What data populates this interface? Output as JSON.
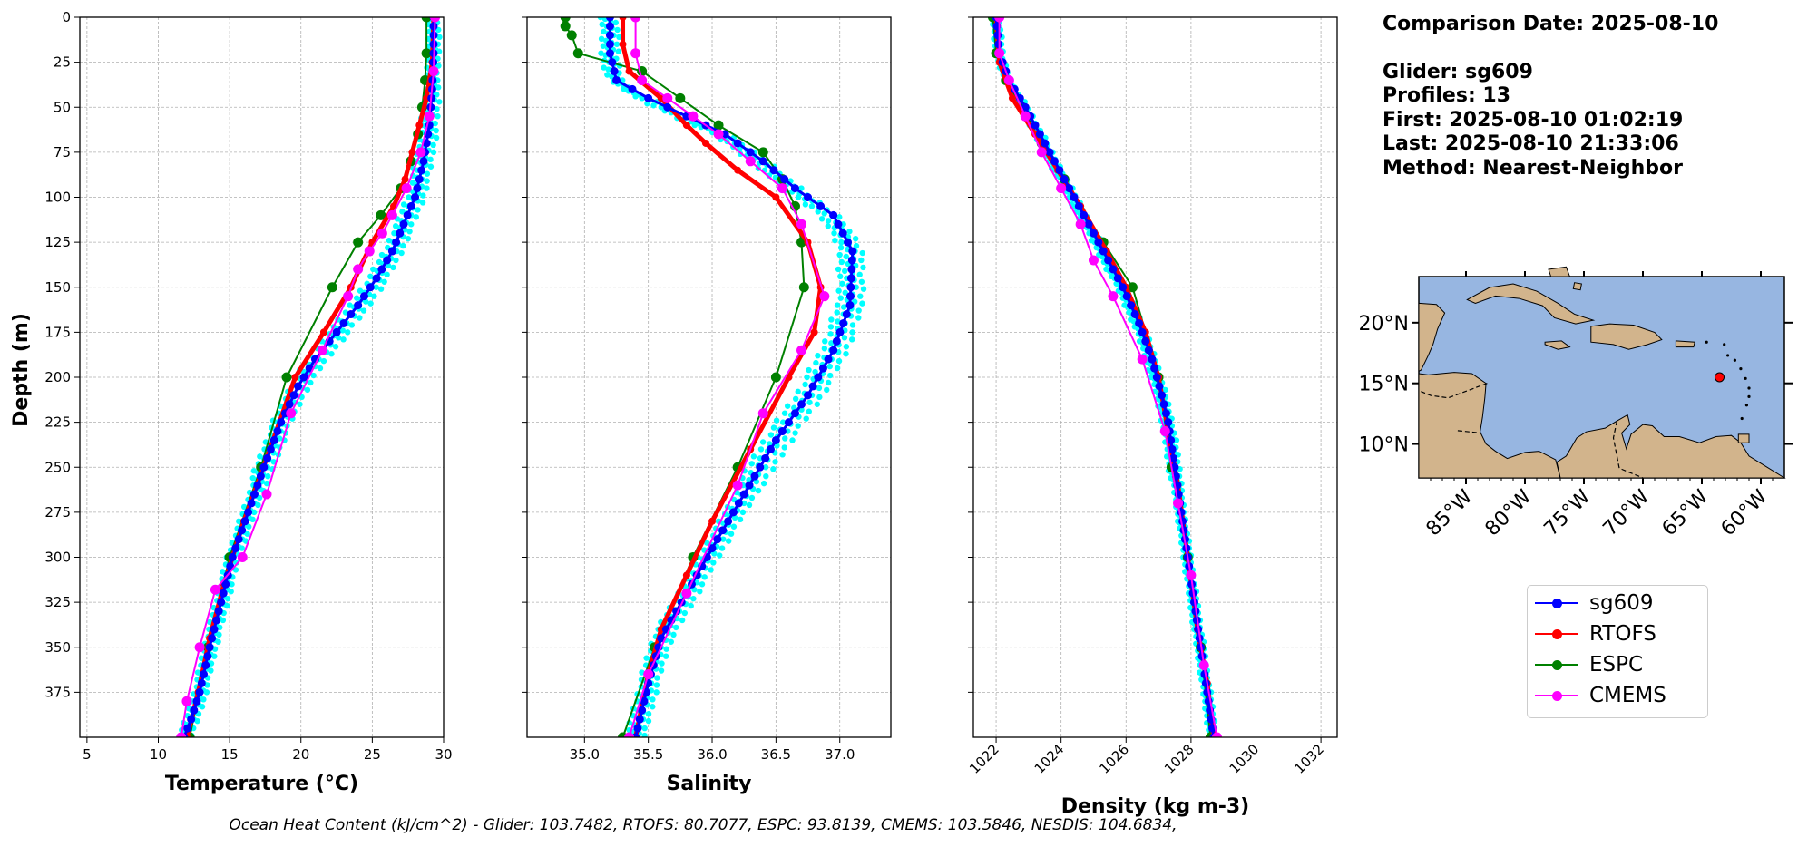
{
  "info": {
    "comparison_date": "Comparison Date: 2025-08-10",
    "glider": "Glider: sg609",
    "profiles": "Profiles: 13",
    "first": "First: 2025-08-10 01:02:19",
    "last": "Last: 2025-08-10 21:33:06",
    "method": "Method: Nearest-Neighbor"
  },
  "footer": "Ocean Heat Content (kJ/cm^2) - Glider: 103.7482,  RTOFS: 80.7077,  ESPC: 93.8139,  CMEMS: 103.5846,  NESDIS: 104.6834,",
  "legend": [
    {
      "name": "sg609",
      "color": "#0000ff"
    },
    {
      "name": "RTOFS",
      "color": "#ff0000"
    },
    {
      "name": "ESPC",
      "color": "#008000"
    },
    {
      "name": "CMEMS",
      "color": "#ff00ff"
    }
  ],
  "colors": {
    "glider_scatter": "#00ffff",
    "ocean": "#97b6e1",
    "land": "#d2b48c",
    "grid": "#b0b0b0"
  },
  "map": {
    "lat_ticks": [
      "20°N",
      "15°N",
      "10°N"
    ],
    "lon_ticks": [
      "85°W",
      "80°W",
      "75°W",
      "70°W",
      "65°W",
      "60°W"
    ],
    "glider_position": {
      "lon": -63.5,
      "lat": 15.5
    }
  },
  "chart_data": [
    {
      "type": "line",
      "xlabel": "Temperature (°C)",
      "ylabel": "Depth (m)",
      "xlim": [
        4.5,
        30
      ],
      "ylim": [
        400,
        0
      ],
      "xticks": [
        5,
        10,
        15,
        20,
        25,
        30
      ],
      "yticks": [
        0,
        25,
        50,
        75,
        100,
        125,
        150,
        175,
        200,
        225,
        250,
        275,
        300,
        325,
        350,
        375
      ],
      "grid": true,
      "series": [
        {
          "name": "sg609",
          "x": [
            29.3,
            29.3,
            29.2,
            29.0,
            28.6,
            28.0,
            27.2,
            26.4,
            25.3,
            24.0,
            22.5,
            21.0,
            19.8,
            18.6,
            17.4,
            16.3,
            15.2,
            14.4,
            13.6,
            12.9,
            12.3,
            11.8
          ],
          "y": [
            0,
            20,
            40,
            60,
            80,
            100,
            115,
            130,
            145,
            160,
            175,
            190,
            205,
            225,
            250,
            275,
            300,
            325,
            350,
            375,
            390,
            400
          ]
        },
        {
          "name": "RTOFS",
          "x": [
            29.3,
            29.2,
            28.8,
            28.3,
            27.8,
            27.3,
            26.5,
            25.0,
            23.5,
            21.6,
            19.6,
            17.6,
            16.0,
            14.6,
            13.6,
            12.8,
            12.0
          ],
          "y": [
            0,
            25,
            45,
            60,
            75,
            90,
            105,
            125,
            150,
            175,
            200,
            245,
            280,
            315,
            345,
            375,
            400
          ]
        },
        {
          "name": "ESPC",
          "x": [
            28.8,
            28.8,
            28.7,
            28.5,
            28.2,
            27.7,
            27.0,
            25.6,
            24.0,
            22.2,
            19.0,
            17.2,
            15.0,
            13.5,
            12.2
          ],
          "y": [
            0,
            20,
            35,
            50,
            65,
            80,
            95,
            110,
            125,
            150,
            200,
            250,
            300,
            350,
            400
          ]
        },
        {
          "name": "CMEMS",
          "x": [
            29.4,
            29.3,
            29.0,
            28.4,
            27.4,
            26.4,
            25.7,
            24.8,
            24.0,
            23.3,
            21.5,
            19.3,
            17.6,
            15.9,
            14.0,
            12.9,
            12.0,
            11.6
          ],
          "y": [
            0,
            30,
            55,
            75,
            95,
            110,
            120,
            130,
            140,
            155,
            185,
            220,
            265,
            300,
            318,
            350,
            380,
            400
          ]
        }
      ]
    },
    {
      "type": "line",
      "xlabel": "Salinity",
      "xlim": [
        34.55,
        37.4
      ],
      "ylim": [
        400,
        0
      ],
      "xticks": [
        35.0,
        35.5,
        36.0,
        36.5,
        37.0
      ],
      "grid": true,
      "series": [
        {
          "name": "sg609",
          "x": [
            35.2,
            35.2,
            35.25,
            35.5,
            35.8,
            36.1,
            36.4,
            36.65,
            36.95,
            37.1,
            37.08,
            36.95,
            36.75,
            36.5,
            36.25,
            36.0,
            35.8,
            35.6,
            35.5,
            35.4
          ],
          "y": [
            0,
            20,
            35,
            45,
            55,
            65,
            80,
            95,
            110,
            130,
            160,
            185,
            210,
            235,
            265,
            295,
            320,
            345,
            370,
            400
          ]
        },
        {
          "name": "RTOFS",
          "x": [
            35.3,
            35.3,
            35.35,
            35.6,
            35.8,
            35.95,
            36.2,
            36.5,
            36.75,
            36.85,
            36.8,
            36.6,
            36.3,
            36.0,
            35.8,
            35.6,
            35.5,
            35.4
          ],
          "y": [
            0,
            15,
            30,
            45,
            60,
            70,
            85,
            100,
            125,
            150,
            175,
            200,
            240,
            280,
            310,
            340,
            365,
            400
          ]
        },
        {
          "name": "ESPC",
          "x": [
            34.85,
            34.85,
            34.9,
            34.95,
            35.45,
            35.75,
            36.05,
            36.4,
            36.55,
            36.65,
            36.7,
            36.72,
            36.5,
            36.2,
            35.85,
            35.55,
            35.3
          ],
          "y": [
            0,
            5,
            10,
            20,
            30,
            45,
            60,
            75,
            90,
            105,
            125,
            150,
            200,
            250,
            300,
            350,
            400
          ]
        },
        {
          "name": "CMEMS",
          "x": [
            35.4,
            35.4,
            35.45,
            35.65,
            35.85,
            36.05,
            36.3,
            36.55,
            36.7,
            36.88,
            36.7,
            36.4,
            36.2,
            35.8,
            35.5,
            35.35
          ],
          "y": [
            0,
            20,
            35,
            45,
            55,
            65,
            80,
            95,
            115,
            155,
            185,
            220,
            260,
            320,
            365,
            400
          ]
        }
      ]
    },
    {
      "type": "line",
      "xlabel": "Density (kg m-3)",
      "xlim": [
        1021.3,
        1032.5
      ],
      "ylim": [
        400,
        0
      ],
      "xticks": [
        1022,
        1024,
        1026,
        1028,
        1030,
        1032
      ],
      "grid": true,
      "series": [
        {
          "name": "sg609",
          "x": [
            1022.0,
            1022.1,
            1022.4,
            1022.9,
            1023.5,
            1024.1,
            1024.7,
            1025.3,
            1025.9,
            1026.4,
            1026.8,
            1027.1,
            1027.3,
            1027.5,
            1027.7,
            1027.9,
            1028.1,
            1028.3,
            1028.5,
            1028.7
          ],
          "y": [
            0,
            20,
            35,
            50,
            70,
            90,
            110,
            130,
            150,
            170,
            190,
            210,
            225,
            250,
            275,
            300,
            325,
            350,
            375,
            400
          ]
        },
        {
          "name": "RTOFS",
          "x": [
            1022.0,
            1022.1,
            1022.5,
            1023.2,
            1023.9,
            1024.6,
            1025.4,
            1026.0,
            1026.6,
            1027.0,
            1027.3,
            1027.6,
            1027.9,
            1028.2,
            1028.5,
            1028.7
          ],
          "y": [
            0,
            25,
            45,
            65,
            85,
            105,
            130,
            150,
            175,
            200,
            230,
            260,
            300,
            340,
            370,
            400
          ]
        },
        {
          "name": "ESPC",
          "x": [
            1021.9,
            1022.0,
            1022.3,
            1022.8,
            1023.4,
            1024.1,
            1025.3,
            1026.2,
            1027.0,
            1027.4,
            1027.9,
            1028.3,
            1028.6
          ],
          "y": [
            0,
            20,
            35,
            50,
            70,
            90,
            125,
            150,
            200,
            250,
            300,
            350,
            400
          ]
        },
        {
          "name": "CMEMS",
          "x": [
            1022.1,
            1022.1,
            1022.4,
            1022.9,
            1023.4,
            1024.0,
            1024.6,
            1025.0,
            1025.6,
            1026.5,
            1027.2,
            1027.6,
            1028.0,
            1028.4,
            1028.8
          ],
          "y": [
            0,
            20,
            35,
            55,
            75,
            95,
            115,
            135,
            155,
            190,
            230,
            270,
            310,
            360,
            400
          ]
        }
      ]
    }
  ]
}
